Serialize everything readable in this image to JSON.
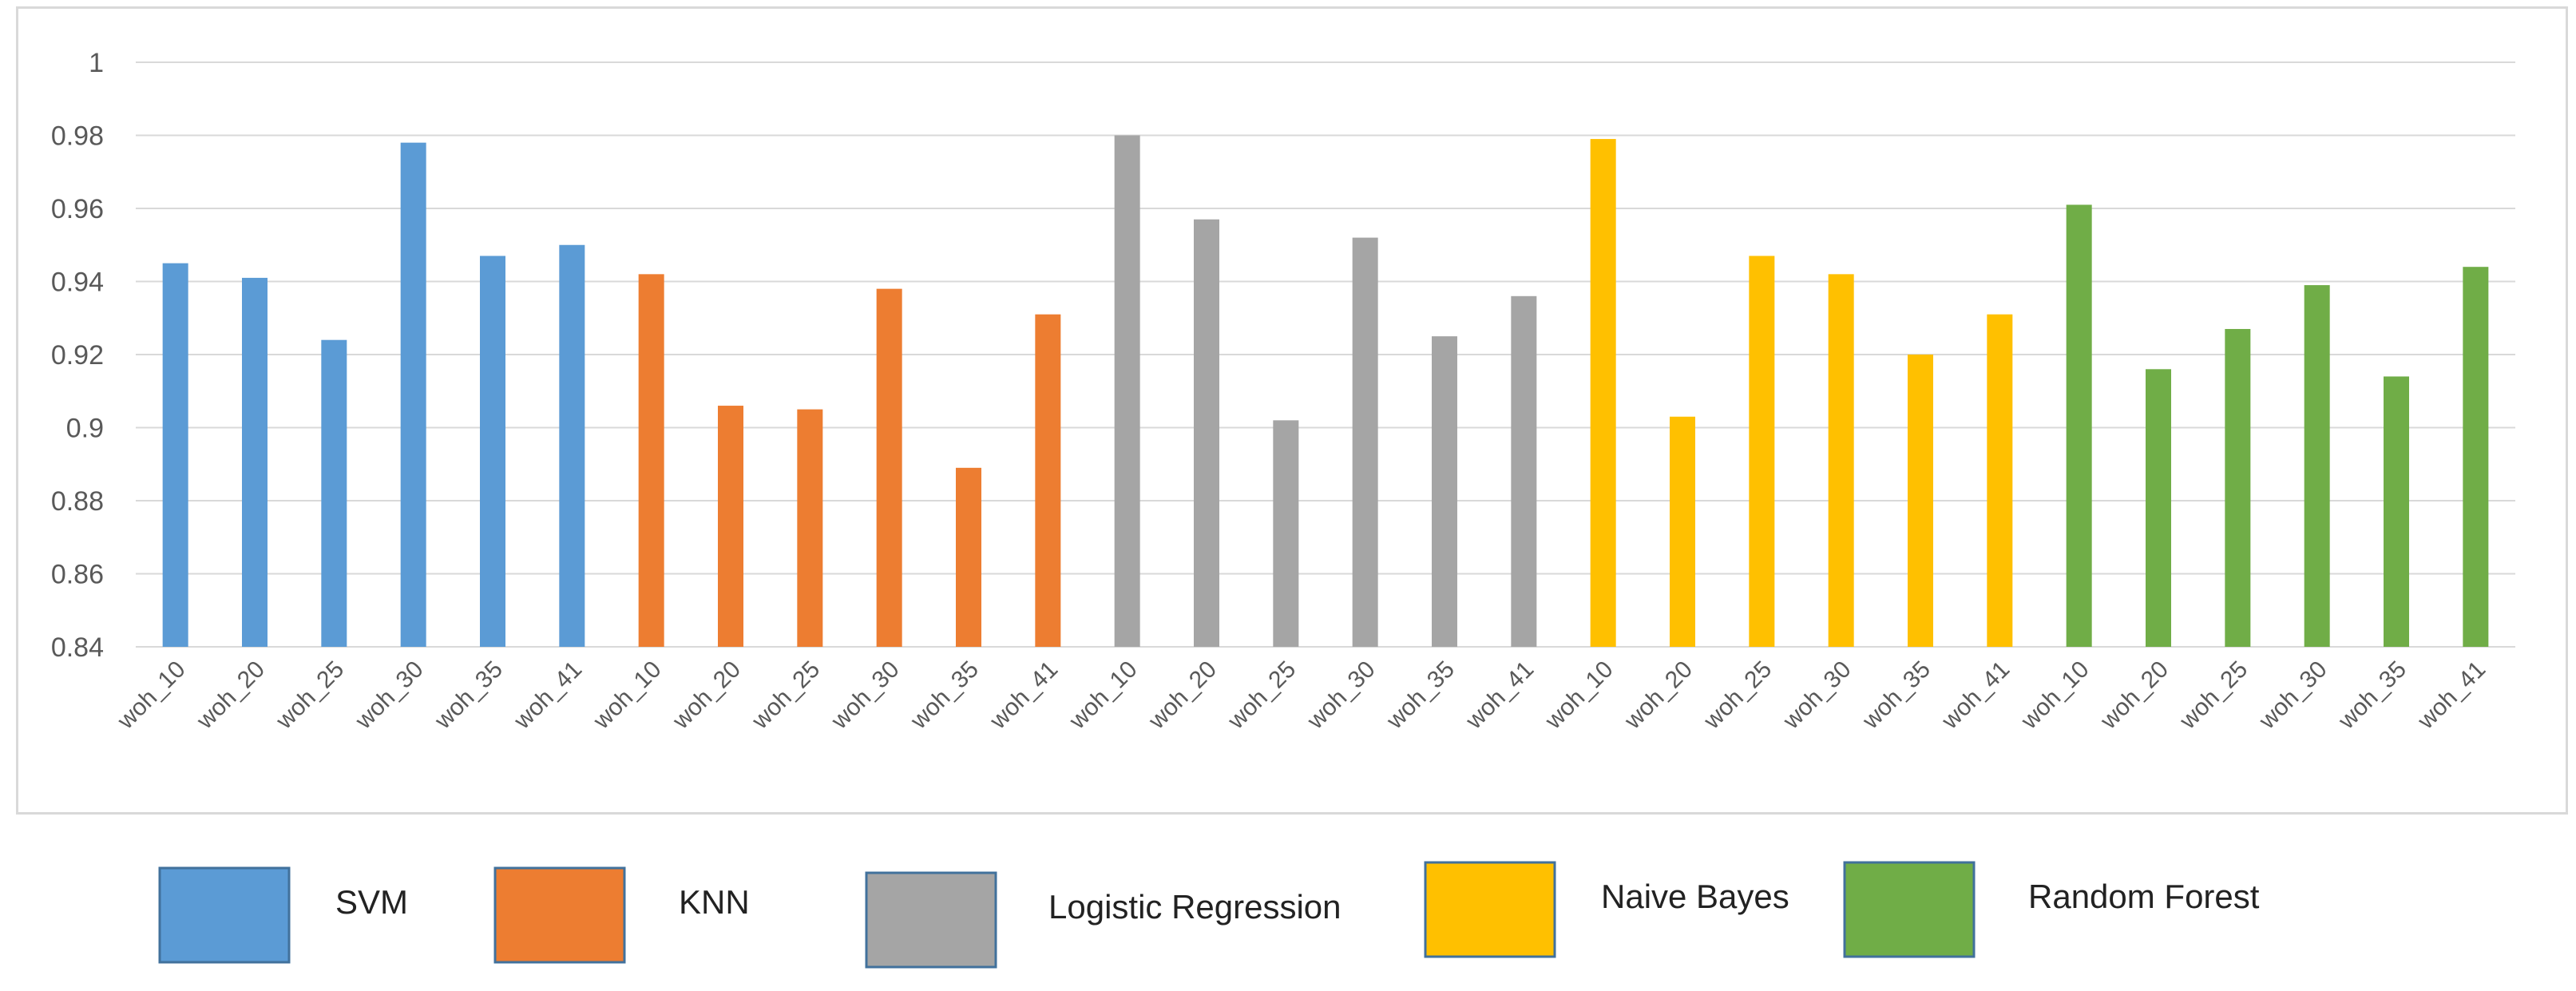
{
  "chart_data": {
    "type": "bar",
    "title": "",
    "xlabel": "",
    "ylabel": "",
    "ylim": [
      0.84,
      1
    ],
    "yticks": [
      0.84,
      0.86,
      0.88,
      0.9,
      0.92,
      0.94,
      0.96,
      0.98,
      1
    ],
    "ytick_labels": [
      "0.84",
      "0.86",
      "0.88",
      "0.9",
      "0.92",
      "0.94",
      "0.96",
      "0.98",
      "1"
    ],
    "grid": true,
    "legend_position": "bottom",
    "series": [
      {
        "name": "SVM",
        "color": "#5b9bd5",
        "categories": [
          "woh_10",
          "woh_20",
          "woh_25",
          "woh_30",
          "woh_35",
          "woh_41"
        ],
        "values": [
          0.945,
          0.941,
          0.924,
          0.978,
          0.947,
          0.95
        ]
      },
      {
        "name": "KNN",
        "color": "#ed7d31",
        "categories": [
          "woh_10",
          "woh_20",
          "woh_25",
          "woh_30",
          "woh_35",
          "woh_41"
        ],
        "values": [
          0.942,
          0.906,
          0.905,
          0.938,
          0.889,
          0.931
        ]
      },
      {
        "name": "Logistic Regression",
        "color": "#a5a5a5",
        "categories": [
          "woh_10",
          "woh_20",
          "woh_25",
          "woh_30",
          "woh_35",
          "woh_41"
        ],
        "values": [
          0.98,
          0.957,
          0.902,
          0.952,
          0.925,
          0.936
        ]
      },
      {
        "name": "Naive Bayes",
        "color": "#ffc000",
        "categories": [
          "woh_10",
          "woh_20",
          "woh_25",
          "woh_30",
          "woh_35",
          "woh_41"
        ],
        "values": [
          0.979,
          0.903,
          0.947,
          0.942,
          0.92,
          0.931
        ]
      },
      {
        "name": "Random Forest",
        "color": "#70ad47",
        "categories": [
          "woh_10",
          "woh_20",
          "woh_25",
          "woh_30",
          "woh_35",
          "woh_41"
        ],
        "values": [
          0.961,
          0.916,
          0.927,
          0.939,
          0.914,
          0.944
        ]
      }
    ]
  }
}
